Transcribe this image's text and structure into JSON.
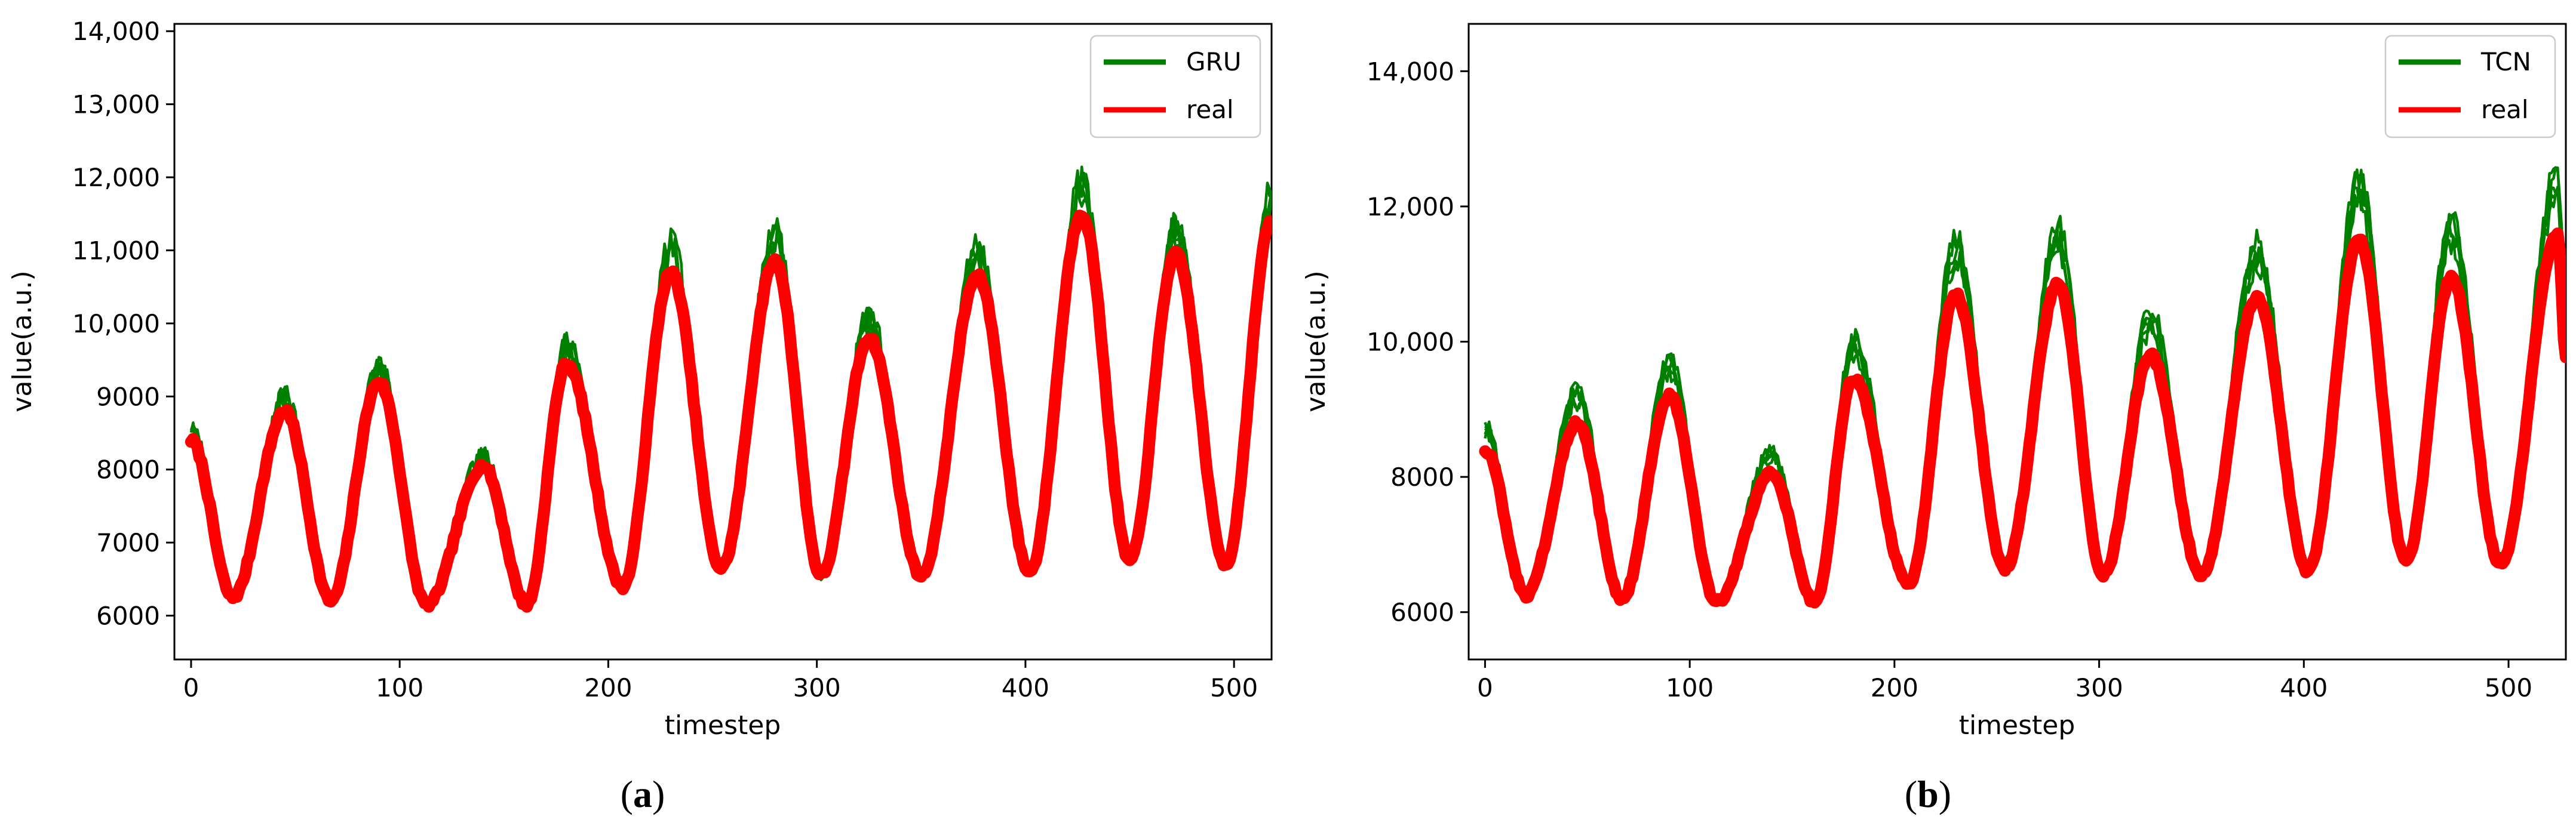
{
  "chart_data": [
    {
      "type": "line",
      "panel_label": "a",
      "xlabel": "timestep",
      "ylabel": "value(a.u.)",
      "xlim": [
        -8,
        518
      ],
      "ylim": [
        5400,
        14100
      ],
      "xticks": [
        0,
        100,
        200,
        300,
        400,
        500
      ],
      "xtick_labels": [
        "0",
        "100",
        "200",
        "300",
        "400",
        "500"
      ],
      "yticks": [
        6000,
        7000,
        8000,
        9000,
        10000,
        11000,
        12000,
        13000,
        14000
      ],
      "ytick_labels": [
        "6000",
        "7000",
        "8000",
        "9000",
        "10,000",
        "11,000",
        "12,000",
        "13,000",
        "14,000"
      ],
      "legend_position": "top-right",
      "series": [
        {
          "name": "GRU",
          "color": "#008000",
          "runs": 5,
          "amp_scale": 1.05,
          "offset": 150,
          "noise": 260,
          "seed": 11
        },
        {
          "name": "real",
          "color": "#ff0000",
          "peaks": [
            [
              0,
              8400
            ],
            [
              45,
              8800
            ],
            [
              90,
              9200
            ],
            [
              140,
              8050
            ],
            [
              180,
              9450
            ],
            [
              230,
              10700
            ],
            [
              280,
              10850
            ],
            [
              325,
              9800
            ],
            [
              377,
              10650
            ],
            [
              427,
              11500
            ],
            [
              472,
              10950
            ],
            [
              518,
              11400
            ]
          ],
          "troughs": [
            [
              20,
              6250
            ],
            [
              67,
              6200
            ],
            [
              113,
              6150
            ],
            [
              161,
              6150
            ],
            [
              207,
              6400
            ],
            [
              254,
              6650
            ],
            [
              302,
              6550
            ],
            [
              350,
              6550
            ],
            [
              402,
              6600
            ],
            [
              450,
              6750
            ],
            [
              496,
              6700
            ]
          ]
        }
      ]
    },
    {
      "type": "line",
      "panel_label": "b",
      "xlabel": "timestep",
      "ylabel": "value(a.u.)",
      "xlim": [
        -8,
        528
      ],
      "ylim": [
        5300,
        14700
      ],
      "xticks": [
        0,
        100,
        200,
        300,
        400,
        500
      ],
      "xtick_labels": [
        "0",
        "100",
        "200",
        "300",
        "400",
        "500"
      ],
      "yticks": [
        6000,
        8000,
        10000,
        12000,
        14000
      ],
      "ytick_labels": [
        "6000",
        "8000",
        "10,000",
        "12,000",
        "14,000"
      ],
      "legend_position": "top-right",
      "series": [
        {
          "name": "TCN",
          "color": "#008000",
          "runs": 5,
          "amp_scale": 1.12,
          "offset": 250,
          "noise": 220,
          "seed": 29
        },
        {
          "name": "real",
          "color": "#ff0000",
          "peaks": [
            [
              0,
              8400
            ],
            [
              45,
              8800
            ],
            [
              90,
              9200
            ],
            [
              140,
              8050
            ],
            [
              180,
              9450
            ],
            [
              230,
              10700
            ],
            [
              280,
              10850
            ],
            [
              325,
              9800
            ],
            [
              377,
              10650
            ],
            [
              427,
              11500
            ],
            [
              472,
              10950
            ],
            [
              524,
              11600
            ]
          ],
          "troughs": [
            [
              20,
              6250
            ],
            [
              67,
              6200
            ],
            [
              113,
              6150
            ],
            [
              161,
              6150
            ],
            [
              207,
              6400
            ],
            [
              254,
              6650
            ],
            [
              302,
              6550
            ],
            [
              350,
              6550
            ],
            [
              402,
              6600
            ],
            [
              450,
              6750
            ],
            [
              496,
              6700
            ],
            [
              528,
              9800
            ]
          ]
        }
      ]
    }
  ]
}
